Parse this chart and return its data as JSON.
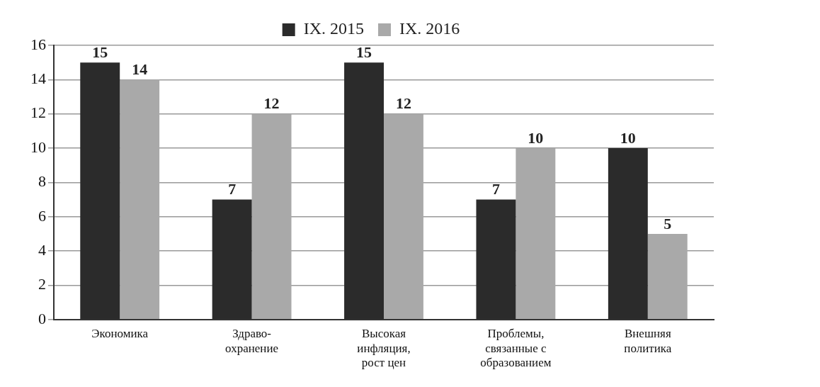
{
  "chart_data": {
    "type": "bar",
    "categories": [
      "Экономика",
      "Здраво-\nохранение",
      "Высокая\nинфляция,\nрост цен",
      "Проблемы,\nсвязанные с\nобразованием",
      "Внешняя\nполитика"
    ],
    "series": [
      {
        "name": "IX. 2015",
        "color": "#2b2b2b",
        "values": [
          15,
          7,
          15,
          7,
          10
        ]
      },
      {
        "name": "IX. 2016",
        "color": "#a9a9a9",
        "values": [
          14,
          12,
          12,
          10,
          5
        ]
      }
    ],
    "ylim": [
      0,
      16
    ],
    "yticks": [
      0,
      2,
      4,
      6,
      8,
      10,
      12,
      14,
      16
    ],
    "grid": "y",
    "legend": "top",
    "data_labels": true
  }
}
